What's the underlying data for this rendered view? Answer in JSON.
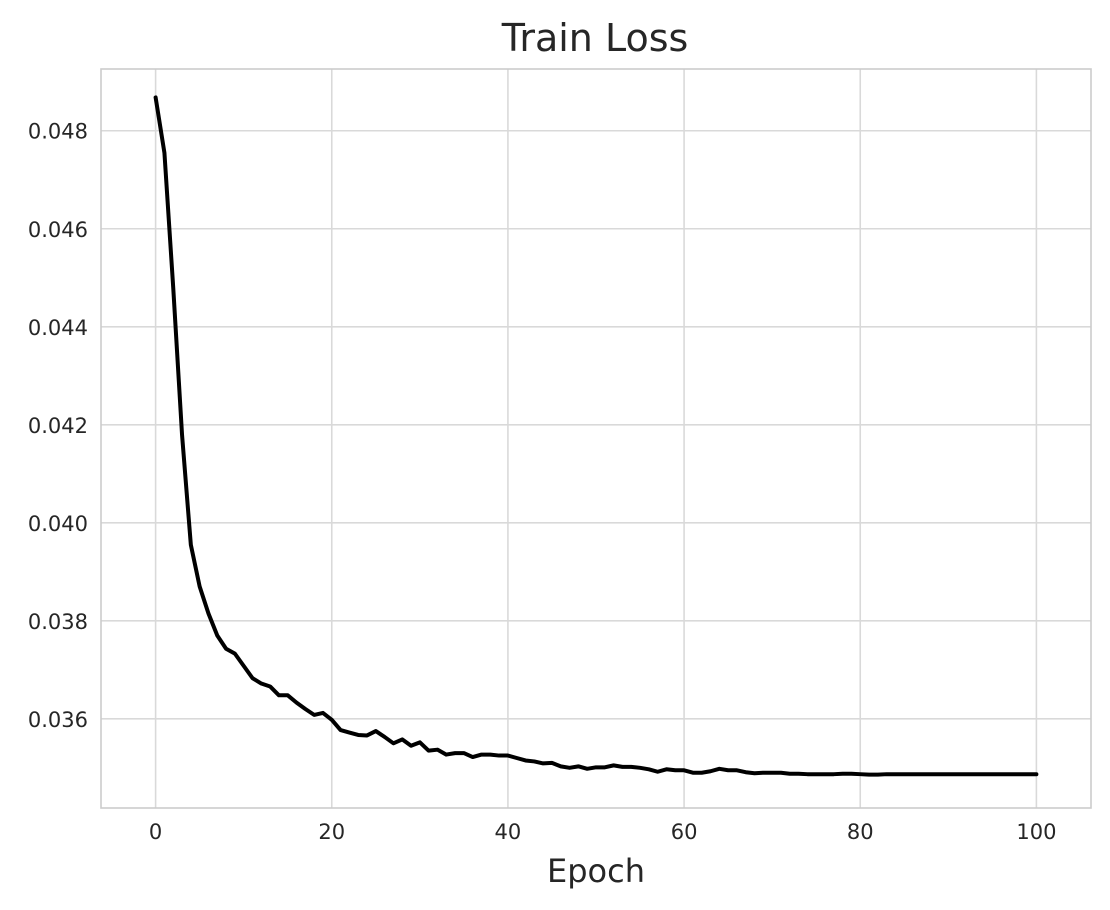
{
  "chart_data": {
    "type": "line",
    "title": "Train Loss",
    "xlabel": "Epoch",
    "ylabel": "",
    "xlim": [
      -6.2,
      106.2
    ],
    "ylim": [
      0.03418,
      0.04926
    ],
    "xticks": [
      0,
      20,
      40,
      60,
      80,
      100
    ],
    "yticks": [
      0.036,
      0.038,
      0.04,
      0.042,
      0.044,
      0.046,
      0.048
    ],
    "xtick_labels": [
      "0",
      "20",
      "40",
      "60",
      "80",
      "100"
    ],
    "ytick_labels": [
      "0.036",
      "0.038",
      "0.040",
      "0.042",
      "0.044",
      "0.046",
      "0.048"
    ],
    "grid": true,
    "color": "#000000",
    "series": [
      {
        "x": [
          0,
          1,
          2,
          3,
          4,
          5,
          6,
          7,
          8,
          9,
          10,
          11,
          12,
          13,
          14,
          15,
          16,
          17,
          18,
          19,
          20,
          21,
          22,
          23,
          24,
          25,
          26,
          27,
          28,
          29,
          30,
          31,
          32,
          33,
          34,
          35,
          36,
          37,
          38,
          39,
          40,
          41,
          42,
          43,
          44,
          45,
          46,
          47,
          48,
          49,
          50,
          51,
          52,
          53,
          54,
          55,
          56,
          57,
          58,
          59,
          60,
          61,
          62,
          63,
          64,
          65,
          66,
          67,
          68,
          69,
          70,
          71,
          72,
          73,
          74,
          75,
          76,
          77,
          78,
          79,
          80,
          81,
          82,
          83,
          84,
          85,
          86,
          87,
          88,
          89,
          90,
          91,
          92,
          93,
          94,
          95,
          96,
          97,
          98,
          99,
          100
        ],
        "y": [
          0.04868,
          0.04755,
          0.0448,
          0.0418,
          0.03955,
          0.0387,
          0.03815,
          0.0377,
          0.03743,
          0.03733,
          0.03708,
          0.03683,
          0.03672,
          0.03666,
          0.03648,
          0.03648,
          0.03633,
          0.0362,
          0.03608,
          0.03612,
          0.03598,
          0.03577,
          0.03572,
          0.03567,
          0.03566,
          0.03575,
          0.03563,
          0.0355,
          0.03558,
          0.03545,
          0.03552,
          0.03535,
          0.03537,
          0.03527,
          0.0353,
          0.0353,
          0.03522,
          0.03527,
          0.03527,
          0.03525,
          0.03525,
          0.0352,
          0.03515,
          0.03513,
          0.03509,
          0.0351,
          0.03503,
          0.035,
          0.03503,
          0.03498,
          0.03501,
          0.03501,
          0.03505,
          0.03502,
          0.03502,
          0.035,
          0.03497,
          0.03492,
          0.03497,
          0.03495,
          0.03495,
          0.0349,
          0.0349,
          0.03493,
          0.03498,
          0.03495,
          0.03495,
          0.03491,
          0.03489,
          0.0349,
          0.0349,
          0.0349,
          0.03488,
          0.03488,
          0.03487,
          0.03487,
          0.03487,
          0.03487,
          0.03488,
          0.03488,
          0.03487,
          0.03486,
          0.03486,
          0.03487,
          0.03487,
          0.03487,
          0.03487,
          0.03487,
          0.03487,
          0.03487,
          0.03487,
          0.03487,
          0.03487,
          0.03487,
          0.03487,
          0.03487,
          0.03487,
          0.03487,
          0.03487,
          0.03487,
          0.03487
        ]
      }
    ]
  }
}
